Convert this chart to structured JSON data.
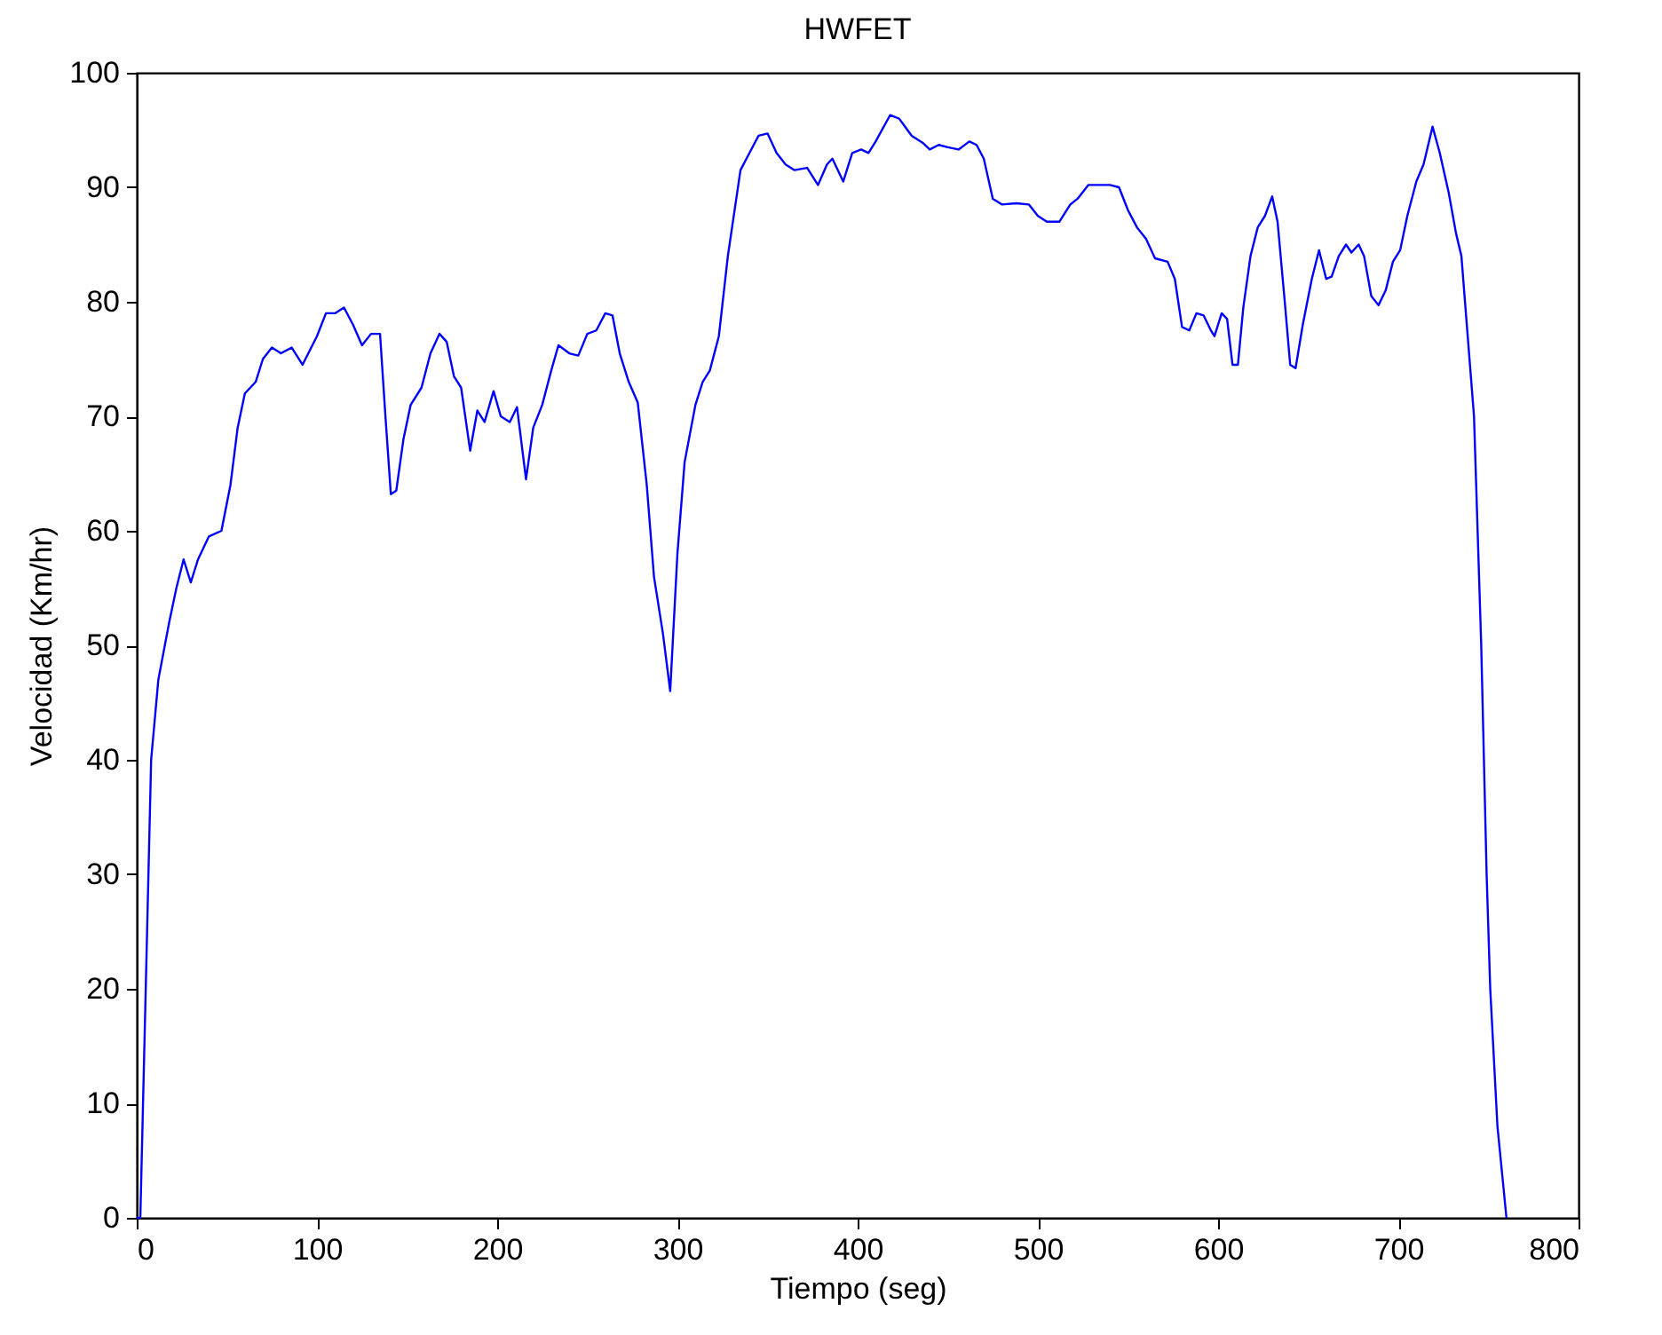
{
  "chart_data": {
    "type": "line",
    "title": "HWFET",
    "xlabel": "Tiempo (seg)",
    "ylabel": "Velocidad (Km/hr)",
    "x": [
      0,
      2,
      5,
      8,
      12,
      18,
      22,
      26,
      30,
      34,
      40,
      47,
      52,
      56,
      60,
      66,
      70,
      75,
      80,
      86,
      92,
      100,
      105,
      110,
      115,
      120,
      125,
      130,
      135,
      138,
      141,
      144,
      148,
      152,
      158,
      163,
      168,
      172,
      176,
      180,
      185,
      189,
      193,
      198,
      202,
      207,
      211,
      216,
      220,
      225,
      230,
      234,
      240,
      245,
      250,
      255,
      260,
      264,
      268,
      273,
      278,
      283,
      287,
      292,
      296,
      300,
      304,
      310,
      314,
      318,
      323,
      328,
      335,
      340,
      345,
      350,
      355,
      360,
      365,
      372,
      378,
      383,
      386,
      392,
      397,
      402,
      406,
      410,
      418,
      423,
      430,
      436,
      440,
      445,
      450,
      456,
      462,
      466,
      470,
      475,
      480,
      488,
      495,
      500,
      505,
      512,
      518,
      522,
      528,
      540,
      545,
      550,
      555,
      560,
      565,
      572,
      576,
      580,
      584,
      588,
      592,
      596,
      598,
      602,
      605,
      608,
      611,
      614,
      618,
      622,
      626,
      630,
      633,
      637,
      640,
      643,
      647,
      652,
      656,
      660,
      663,
      667,
      671,
      674,
      678,
      681,
      685,
      689,
      693,
      697,
      701,
      705,
      710,
      714,
      719,
      723,
      728,
      732,
      735,
      738,
      742,
      744,
      746,
      749,
      751,
      755,
      760
    ],
    "series": [
      {
        "color": "#0000ff",
        "values": [
          0,
          0,
          20,
          40,
          47,
          52,
          55,
          57.5,
          55.5,
          57.5,
          59.5,
          60,
          64,
          69,
          72,
          73,
          75,
          76,
          75.5,
          76,
          74.5,
          77,
          79,
          79,
          79.5,
          78,
          76.2,
          77.2,
          77.2,
          70,
          63.2,
          63.5,
          68,
          71,
          72.5,
          75.5,
          77.2,
          76.5,
          73.5,
          72.5,
          67,
          70.5,
          69.5,
          72.2,
          70,
          69.5,
          70.8,
          64.5,
          69,
          71,
          74,
          76.2,
          75.5,
          75.3,
          77.2,
          77.5,
          79,
          78.8,
          75.5,
          73,
          71.2,
          64,
          56,
          51,
          46,
          58,
          66,
          71,
          73,
          74,
          77,
          84,
          91.5,
          93,
          94.5,
          94.7,
          93,
          92,
          91.5,
          91.7,
          90.2,
          92,
          92.5,
          90.5,
          93,
          93.3,
          93,
          94,
          96.3,
          96,
          94.5,
          93.9,
          93.3,
          93.7,
          93.5,
          93.3,
          94,
          93.7,
          92.5,
          89,
          88.5,
          88.6,
          88.5,
          87.5,
          87,
          87,
          88.5,
          89,
          90.2,
          90.2,
          90,
          88,
          86.5,
          85.5,
          83.8,
          83.5,
          82,
          77.8,
          77.5,
          79,
          78.8,
          77.5,
          77,
          79,
          78.5,
          74.5,
          74.5,
          79.5,
          84,
          86.5,
          87.5,
          89.2,
          87,
          80,
          74.5,
          74.2,
          78,
          82,
          84.5,
          82,
          82.2,
          84,
          85,
          84.3,
          85,
          84,
          80.5,
          79.7,
          81,
          83.5,
          84.5,
          87.5,
          90.5,
          92,
          95.3,
          93,
          89.5,
          86,
          84,
          78,
          70,
          60,
          50,
          30,
          20,
          8,
          0
        ]
      }
    ],
    "xlim": [
      0,
      800
    ],
    "xticks": [
      0,
      100,
      200,
      300,
      400,
      500,
      600,
      700,
      800
    ],
    "ylim": [
      0,
      100
    ],
    "yticks": [
      0,
      10,
      20,
      30,
      40,
      50,
      60,
      70,
      80,
      90,
      100
    ],
    "grid": false,
    "marker": "none",
    "line_style": "solid"
  }
}
